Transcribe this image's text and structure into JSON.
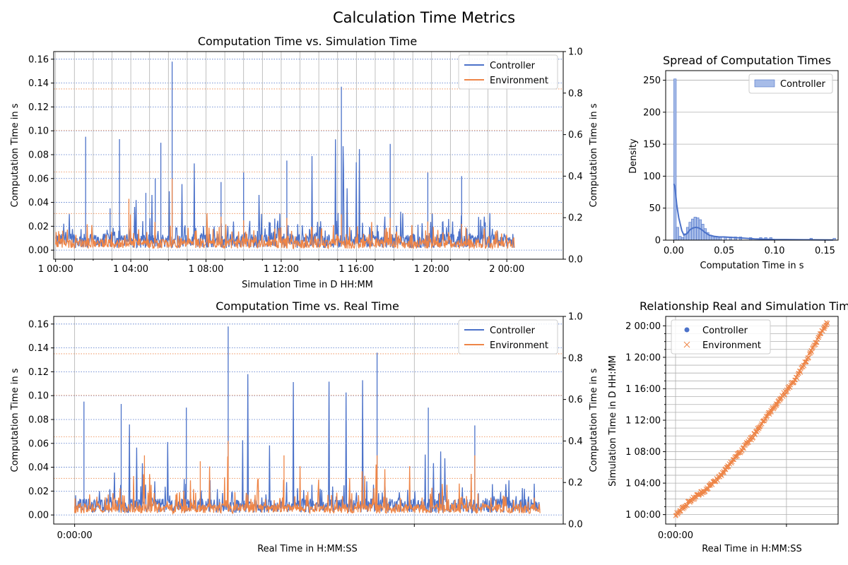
{
  "figure": {
    "suptitle": "Calculation Time Metrics",
    "colors": {
      "controller": "#4c72c9",
      "environment": "#ee8547",
      "axis": "#000000",
      "grid": "#b0b0b0"
    }
  },
  "chart_data": [
    {
      "type": "line",
      "title": "Computation Time vs. Simulation Time",
      "xlabel": "Simulation Time in D HH:MM",
      "ylabel": "Computation Time in s",
      "ylabel_right": "Computation Time in s",
      "ylim": [
        -0.0076,
        0.1664
      ],
      "ylim_right": [
        0,
        1.0
      ],
      "yticks": [
        "0.00",
        "0.02",
        "0.04",
        "0.06",
        "0.08",
        "0.10",
        "0.12",
        "0.14",
        "0.16"
      ],
      "yticks_right": [
        "0.0",
        "0.2",
        "0.4",
        "0.6",
        "0.8",
        "1.0"
      ],
      "x_range_hours": [
        -0.1,
        27
      ],
      "xticks": [
        {
          "label": "1 00:00",
          "hours": 0
        },
        {
          "label": "1 04:00",
          "hours": 4
        },
        {
          "label": "1 08:00",
          "hours": 8
        },
        {
          "label": "1 12:00",
          "hours": 12
        },
        {
          "label": "1 16:00",
          "hours": 16
        },
        {
          "label": "1 20:00",
          "hours": 20
        },
        {
          "label": "2 00:00",
          "hours": 24
        }
      ],
      "legend": "top-right",
      "grid": true,
      "series": [
        {
          "name": "Controller",
          "x_hours": [
            0.0,
            1.6,
            2.9,
            3.4,
            4.8,
            5.3,
            5.6,
            6.2,
            8.8,
            10.0,
            12.3,
            15.2,
            17.8,
            19.8,
            21.6,
            24.2
          ],
          "values": [
            0.003,
            0.095,
            0.035,
            0.093,
            0.048,
            0.06,
            0.09,
            0.158,
            0.057,
            0.065,
            0.075,
            0.137,
            0.089,
            0.065,
            0.062,
            0.005
          ]
        },
        {
          "name": "Environment",
          "x_hours": [
            0.0,
            3.9,
            6.2,
            8.8,
            10.0,
            12.3,
            15.2,
            17.8,
            19.8,
            21.6,
            24.2
          ],
          "values": [
            0.003,
            0.043,
            0.06,
            0.028,
            0.025,
            0.027,
            0.03,
            0.027,
            0.024,
            0.022,
            0.008
          ]
        }
      ]
    },
    {
      "type": "histogram",
      "title": "Spread of Computation Times",
      "xlabel": "Computation Time in s",
      "ylabel": "Density",
      "xlim": [
        -0.008,
        0.163
      ],
      "ylim": [
        0,
        265
      ],
      "xticks": [
        "0.00",
        "0.05",
        "0.10",
        "0.15"
      ],
      "yticks": [
        "0",
        "50",
        "100",
        "150",
        "200",
        "250"
      ],
      "legend": "top-right",
      "series": [
        {
          "name": "Controller",
          "bin_width": 0.0025,
          "bin_starts": [
            0.0,
            0.0025,
            0.005,
            0.0075,
            0.01,
            0.0125,
            0.015,
            0.0175,
            0.02,
            0.0225,
            0.025,
            0.0275,
            0.03,
            0.0325,
            0.035,
            0.0375,
            0.04,
            0.0425,
            0.045,
            0.05,
            0.055,
            0.06,
            0.065,
            0.075,
            0.085,
            0.09,
            0.095,
            0.135,
            0.158
          ],
          "density": [
            252,
            20,
            6,
            4,
            10,
            20,
            28,
            33,
            36,
            35,
            32,
            25,
            18,
            12,
            8,
            6,
            6,
            5,
            5,
            5,
            5,
            5,
            5,
            4,
            4,
            4,
            4,
            3,
            3
          ],
          "kde_x": [
            0.0,
            0.001,
            0.002,
            0.003,
            0.005,
            0.008,
            0.01,
            0.013,
            0.016,
            0.019,
            0.022,
            0.025,
            0.028,
            0.031,
            0.035,
            0.04,
            0.045,
            0.05,
            0.06,
            0.07,
            0.08,
            0.1,
            0.13,
            0.158
          ],
          "kde_y": [
            88,
            85,
            70,
            55,
            35,
            15,
            8,
            10,
            16,
            19,
            20,
            19,
            16,
            12,
            8,
            6,
            5,
            5,
            4,
            3,
            2,
            1,
            0.5,
            0.2
          ]
        }
      ]
    },
    {
      "type": "line",
      "title": "Computation Time vs. Real Time",
      "xlabel": "Real Time in H:MM:SS",
      "ylabel": "Computation Time in s",
      "ylabel_right": "Computation Time in s",
      "ylim": [
        -0.0076,
        0.1664
      ],
      "ylim_right": [
        0,
        1.0
      ],
      "yticks": [
        "0.00",
        "0.02",
        "0.04",
        "0.06",
        "0.08",
        "0.10",
        "0.12",
        "0.14",
        "0.16"
      ],
      "yticks_right": [
        "0.0",
        "0.2",
        "0.4",
        "0.6",
        "0.8",
        "1.0"
      ],
      "xticks": [
        "0:00:00"
      ],
      "legend": "top-right",
      "grid": true,
      "series": [
        {
          "name": "Controller",
          "x_frac": [
            0.0,
            0.02,
            0.1,
            0.24,
            0.33,
            0.65,
            0.76,
            0.86,
            1.0
          ],
          "values": [
            0.003,
            0.095,
            0.093,
            0.09,
            0.158,
            0.136,
            0.09,
            0.075,
            0.003
          ]
        },
        {
          "name": "Environment",
          "x_frac": [
            0.0,
            0.15,
            0.27,
            0.33,
            0.45,
            0.65,
            0.86,
            1.0
          ],
          "values": [
            0.003,
            0.05,
            0.045,
            0.062,
            0.05,
            0.05,
            0.05,
            0.003
          ]
        }
      ]
    },
    {
      "type": "scatter",
      "title": "Relationship Real and Simulation Time",
      "xlabel": "Real Time in H:MM:SS",
      "ylabel": "Simulation Time in D HH:MM",
      "xticks": [
        "0:00:00"
      ],
      "yticks": [
        "1 00:00",
        "1 04:00",
        "1 08:00",
        "1 12:00",
        "1 16:00",
        "1 20:00",
        "2 00:00"
      ],
      "y_range_hours": [
        -1.2,
        25.2
      ],
      "legend": "top-left",
      "grid": true,
      "series": [
        {
          "name": "Controller",
          "marker": "circle"
        },
        {
          "name": "Environment",
          "marker": "x",
          "x_frac": [
            0.0,
            0.1,
            0.2,
            0.3,
            0.4,
            0.5,
            0.6,
            0.7,
            0.8,
            0.9,
            1.0
          ],
          "y_hours": [
            0.0,
            1.8,
            3.2,
            5.0,
            7.5,
            9.7,
            12.5,
            15.0,
            17.5,
            21.0,
            24.5
          ]
        }
      ]
    }
  ]
}
